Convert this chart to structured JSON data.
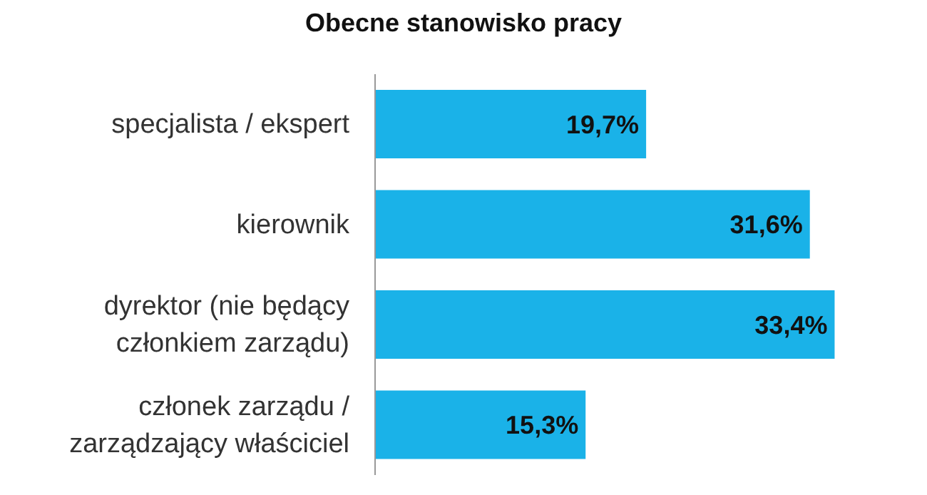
{
  "chart_data": {
    "type": "bar",
    "orientation": "horizontal",
    "title": "Obecne stanowisko pracy",
    "categories": [
      "specjalista / ekspert",
      "kierownik",
      "dyrektor (nie będący członkiem zarządu)",
      "członek zarządu / zarządzający właściciel"
    ],
    "values": [
      19.7,
      31.6,
      33.4,
      15.3
    ],
    "value_labels": [
      "19,7%",
      "31,6%",
      "33,4%",
      "15,3%"
    ],
    "color": "#1ab2e8",
    "relative": false,
    "grid": false,
    "legend": false
  }
}
